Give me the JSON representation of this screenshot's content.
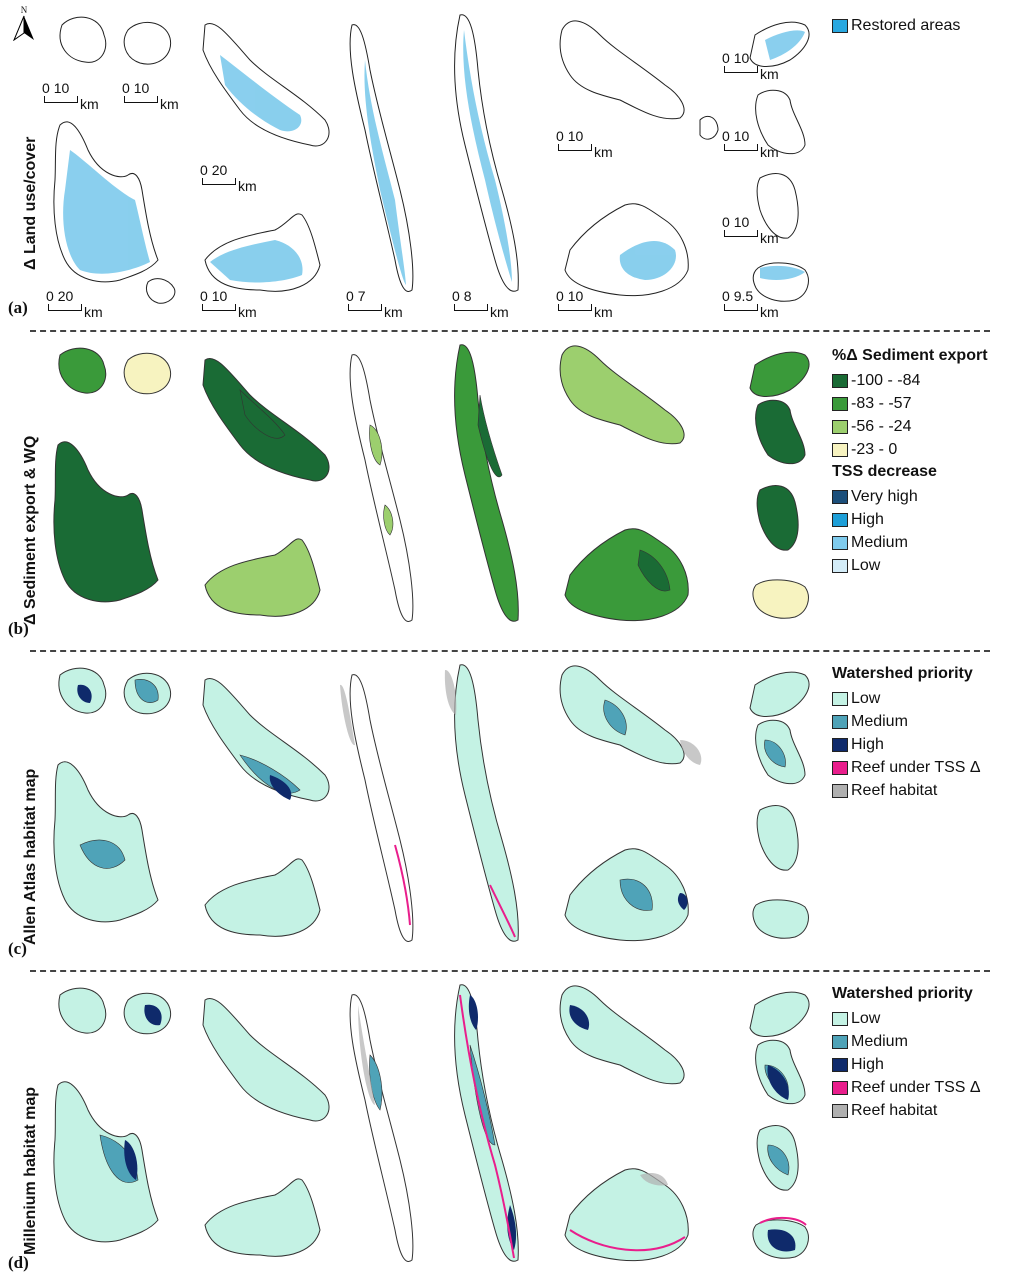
{
  "north_label": "N",
  "panels": [
    {
      "letter": "(a)",
      "title": "Δ Land use/cover"
    },
    {
      "letter": "(b)",
      "title": "Δ Sediment export & WQ"
    },
    {
      "letter": "(c)",
      "title": "Allen Atlas habitat map"
    },
    {
      "letter": "(d)",
      "title": "Millenium habitat map"
    }
  ],
  "scalebars": [
    {
      "start": "0",
      "end": "10",
      "unit": "km"
    },
    {
      "start": "0",
      "end": "10",
      "unit": "km"
    },
    {
      "start": "0",
      "end": "20",
      "unit": "km"
    },
    {
      "start": "0",
      "end": "20",
      "unit": "km"
    },
    {
      "start": "0",
      "end": "10",
      "unit": "km"
    },
    {
      "start": "0",
      "end": "7",
      "unit": "km"
    },
    {
      "start": "0",
      "end": "8",
      "unit": "km"
    },
    {
      "start": "0",
      "end": "10",
      "unit": "km"
    },
    {
      "start": "0",
      "end": "10",
      "unit": "km"
    },
    {
      "start": "0",
      "end": "10",
      "unit": "km"
    },
    {
      "start": "0",
      "end": "10",
      "unit": "km"
    },
    {
      "start": "0",
      "end": "10",
      "unit": "km"
    },
    {
      "start": "0",
      "end": "9.5",
      "unit": "km"
    }
  ],
  "legend_a": {
    "items": [
      {
        "label": "Restored areas",
        "color": "#29a8e0"
      }
    ]
  },
  "legend_b": {
    "title1": "%Δ Sediment export",
    "items1": [
      {
        "label": "-100 - -84",
        "color": "#1a6b35"
      },
      {
        "label": "-83 - -57",
        "color": "#3a9a3a"
      },
      {
        "label": "-56 - -24",
        "color": "#9ccf6e"
      },
      {
        "label": "-23 - 0",
        "color": "#f7f3c0"
      }
    ],
    "title2": "TSS decrease",
    "items2": [
      {
        "label": "Very high",
        "color": "#1c4f7a"
      },
      {
        "label": "High",
        "color": "#1e9fd8"
      },
      {
        "label": "Medium",
        "color": "#7fcbed"
      },
      {
        "label": "Low",
        "color": "#d3ecf8"
      }
    ]
  },
  "legend_c": {
    "title": "Watershed priority",
    "items": [
      {
        "label": "Low",
        "color": "#c4f2e4"
      },
      {
        "label": "Medium",
        "color": "#4fa3b8"
      },
      {
        "label": "High",
        "color": "#0f2a6b"
      },
      {
        "label": "Reef under TSS Δ",
        "color": "#e91e8c"
      },
      {
        "label": "Reef habitat",
        "color": "#b0b0b0"
      }
    ]
  },
  "legend_d": {
    "title": "Watershed priority",
    "items": [
      {
        "label": "Low",
        "color": "#c4f2e4"
      },
      {
        "label": "Medium",
        "color": "#4fa3b8"
      },
      {
        "label": "High",
        "color": "#0f2a6b"
      },
      {
        "label": "Reef under TSS Δ",
        "color": "#e91e8c"
      },
      {
        "label": "Reef habitat",
        "color": "#b0b0b0"
      }
    ]
  }
}
